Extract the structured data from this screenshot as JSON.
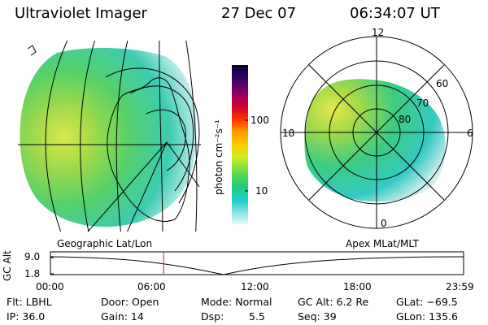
{
  "header": {
    "instrument": "Ultraviolet Imager",
    "date": "27 Dec 07",
    "time": "06:34:07 UT"
  },
  "colorbar": {
    "unit_label": "photon cm⁻²s⁻¹",
    "ticks": [
      "100",
      "10"
    ],
    "colors": [
      "#000033",
      "#330066",
      "#8a0066",
      "#cc0033",
      "#ff3300",
      "#ff9900",
      "#ffcc00",
      "#ccee22",
      "#66dd44",
      "#22cc77",
      "#22cccc",
      "#88e6e6",
      "#e6f7f7"
    ]
  },
  "geo_panel": {
    "label": "Geographic Lat/Lon"
  },
  "polar_panel": {
    "label": "Apex MLat/MLT",
    "mlt_labels": {
      "top": "12",
      "left": "18",
      "right": "6",
      "bottom": "0"
    },
    "mlat_labels": [
      "60",
      "70",
      "80"
    ]
  },
  "altitude_plot": {
    "ylabel": "GC Alt",
    "yticks": [
      "9.0",
      "1.8"
    ],
    "xticks": [
      "00:00",
      "06:00",
      "12:00",
      "18:00",
      "23:59"
    ],
    "current_marker_hour": 6.57
  },
  "status": {
    "flt": "Flt: LBHL",
    "ip": "IP: 36.0",
    "door": "Door: Open",
    "gain": "Gain: 14",
    "mode": "Mode: Normal",
    "dsp_label": "Dsp:",
    "dsp_value": "5.5",
    "gc_alt": "GC Alt: 6.2 Re",
    "seq": "Seq: 39",
    "glat": "GLat: −69.5",
    "glon": "GLon: 135.6"
  }
}
